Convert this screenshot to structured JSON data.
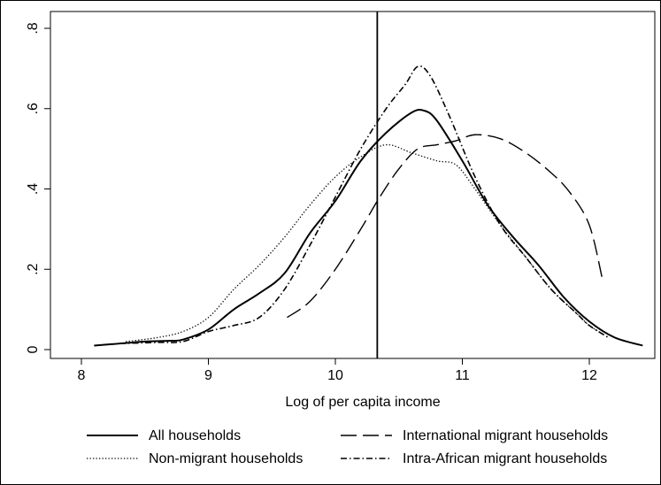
{
  "chart_data": {
    "type": "line",
    "title": "",
    "xlabel": "Log of per capita income",
    "ylabel": "",
    "xlim": [
      7.95,
      12.55
    ],
    "ylim": [
      -0.02,
      0.82
    ],
    "x_ticks": [
      8,
      9,
      10,
      11,
      12
    ],
    "x_tick_labels": [
      "8",
      "9",
      "10",
      "11",
      "12"
    ],
    "y_ticks": [
      0,
      0.2,
      0.4,
      0.6,
      0.8
    ],
    "y_tick_labels": [
      "0",
      ".2",
      ".4",
      ".6",
      ".8"
    ],
    "grid": false,
    "legend_position": "bottom",
    "vline": {
      "x": 10.33
    },
    "series": [
      {
        "name": "All households",
        "style": "solid",
        "points": [
          [
            8.1,
            0.01
          ],
          [
            8.3,
            0.015
          ],
          [
            8.5,
            0.02
          ],
          [
            8.7,
            0.022
          ],
          [
            8.8,
            0.025
          ],
          [
            9.0,
            0.05
          ],
          [
            9.2,
            0.1
          ],
          [
            9.4,
            0.14
          ],
          [
            9.6,
            0.19
          ],
          [
            9.8,
            0.29
          ],
          [
            10.0,
            0.37
          ],
          [
            10.2,
            0.47
          ],
          [
            10.4,
            0.54
          ],
          [
            10.6,
            0.59
          ],
          [
            10.7,
            0.595
          ],
          [
            10.8,
            0.57
          ],
          [
            11.0,
            0.47
          ],
          [
            11.2,
            0.36
          ],
          [
            11.4,
            0.28
          ],
          [
            11.6,
            0.21
          ],
          [
            11.8,
            0.13
          ],
          [
            12.0,
            0.07
          ],
          [
            12.2,
            0.03
          ],
          [
            12.42,
            0.01
          ]
        ]
      },
      {
        "name": "International migrant households",
        "style": "dashed",
        "points": [
          [
            9.62,
            0.08
          ],
          [
            9.8,
            0.12
          ],
          [
            10.0,
            0.2
          ],
          [
            10.2,
            0.3
          ],
          [
            10.35,
            0.38
          ],
          [
            10.5,
            0.45
          ],
          [
            10.65,
            0.5
          ],
          [
            10.8,
            0.51
          ],
          [
            10.95,
            0.52
          ],
          [
            11.1,
            0.535
          ],
          [
            11.3,
            0.525
          ],
          [
            11.5,
            0.49
          ],
          [
            11.7,
            0.44
          ],
          [
            11.85,
            0.39
          ],
          [
            12.0,
            0.31
          ],
          [
            12.1,
            0.18
          ]
        ]
      },
      {
        "name": "Non-migrant households",
        "style": "dotted",
        "points": [
          [
            8.35,
            0.02
          ],
          [
            8.6,
            0.03
          ],
          [
            8.8,
            0.045
          ],
          [
            9.0,
            0.08
          ],
          [
            9.2,
            0.15
          ],
          [
            9.4,
            0.21
          ],
          [
            9.6,
            0.28
          ],
          [
            9.8,
            0.36
          ],
          [
            10.0,
            0.43
          ],
          [
            10.2,
            0.48
          ],
          [
            10.4,
            0.51
          ],
          [
            10.6,
            0.49
          ],
          [
            10.8,
            0.47
          ],
          [
            10.95,
            0.46
          ],
          [
            11.1,
            0.4
          ],
          [
            11.3,
            0.31
          ],
          [
            11.5,
            0.23
          ],
          [
            11.7,
            0.15
          ],
          [
            11.9,
            0.09
          ],
          [
            12.0,
            0.06
          ],
          [
            12.1,
            0.04
          ]
        ]
      },
      {
        "name": "Intra-African migrant households",
        "style": "dashdot",
        "points": [
          [
            8.3,
            0.015
          ],
          [
            8.6,
            0.018
          ],
          [
            8.8,
            0.02
          ],
          [
            9.0,
            0.045
          ],
          [
            9.2,
            0.06
          ],
          [
            9.4,
            0.08
          ],
          [
            9.6,
            0.15
          ],
          [
            9.8,
            0.26
          ],
          [
            10.0,
            0.38
          ],
          [
            10.2,
            0.5
          ],
          [
            10.4,
            0.6
          ],
          [
            10.55,
            0.66
          ],
          [
            10.65,
            0.705
          ],
          [
            10.75,
            0.68
          ],
          [
            10.9,
            0.58
          ],
          [
            11.1,
            0.43
          ],
          [
            11.3,
            0.31
          ],
          [
            11.5,
            0.23
          ],
          [
            11.7,
            0.15
          ],
          [
            11.9,
            0.09
          ],
          [
            12.0,
            0.06
          ],
          [
            12.15,
            0.03
          ]
        ]
      }
    ]
  }
}
